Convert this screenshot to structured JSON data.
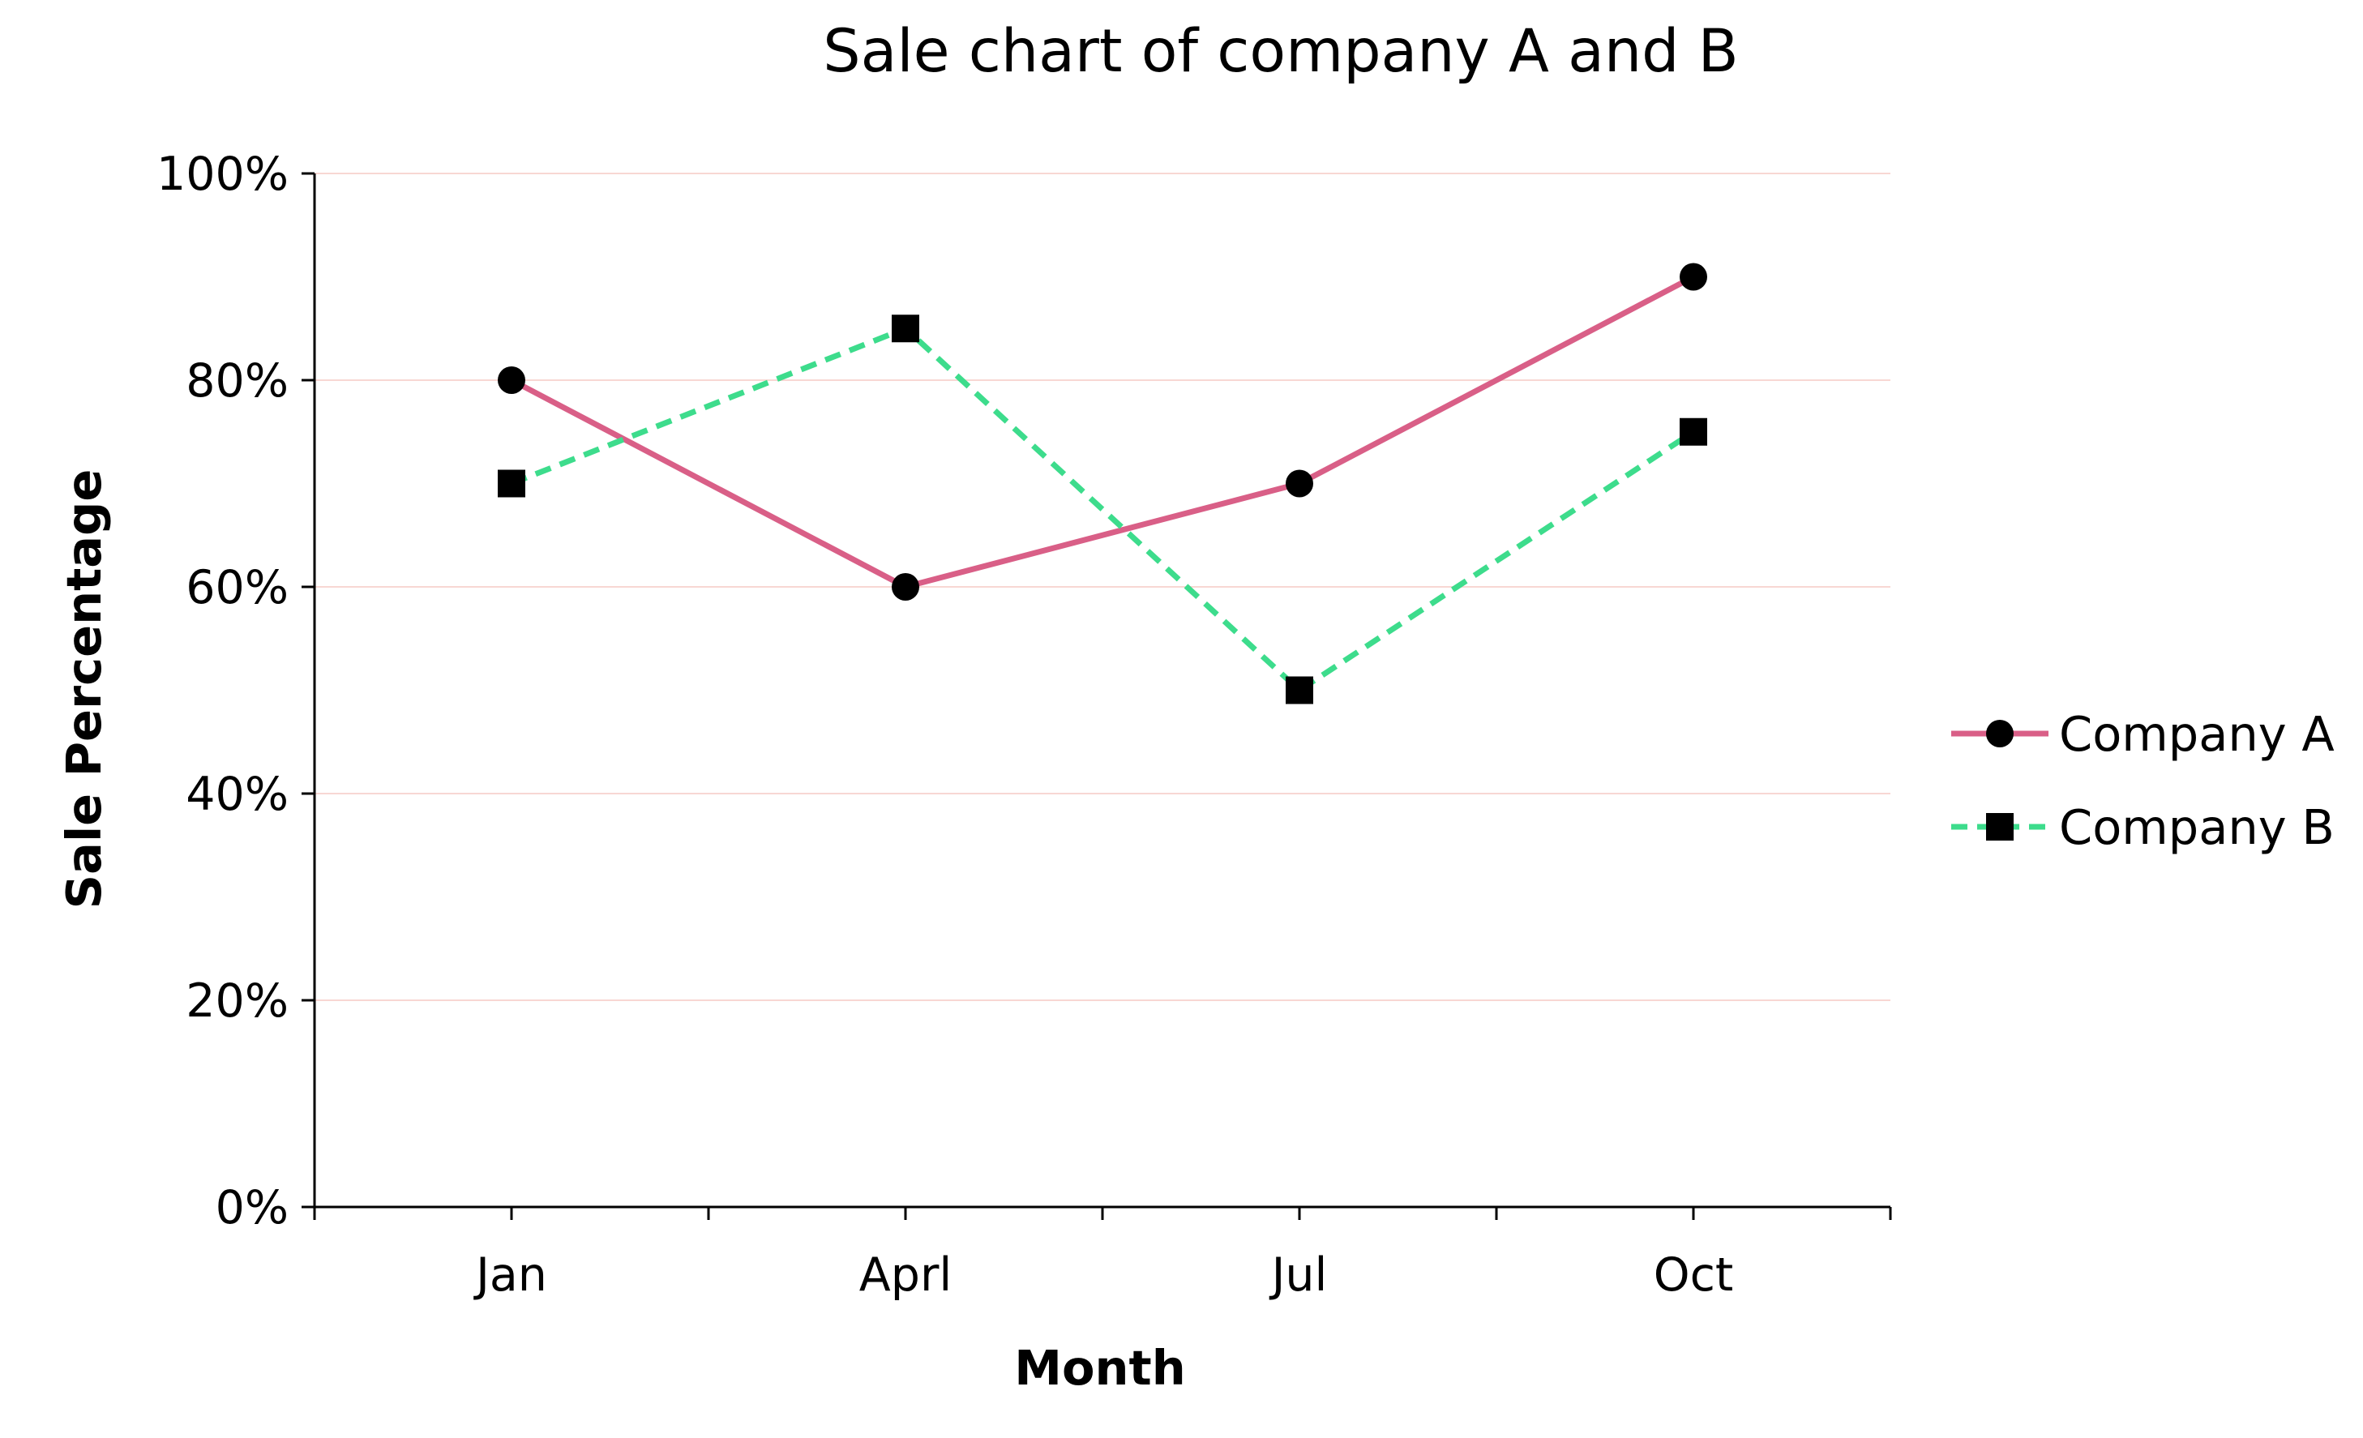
{
  "chart_data": {
    "type": "line",
    "title": "Sale chart of company A and B",
    "xlabel": "Month",
    "ylabel": "Sale Percentage",
    "categories": [
      "Jan",
      "Aprl",
      "Jul",
      "Oct"
    ],
    "ylim": [
      0,
      100
    ],
    "yticks": [
      0,
      20,
      40,
      60,
      80,
      100
    ],
    "ytick_labels": [
      "0%",
      "20%",
      "40%",
      "60%",
      "80%",
      "100%"
    ],
    "grid": true,
    "grid_color": "#f8d7d3",
    "legend_position": "right",
    "series": [
      {
        "name": "Company A",
        "values": [
          80,
          60,
          70,
          90
        ],
        "color": "#d95f87",
        "line_style": "solid",
        "marker": "circle"
      },
      {
        "name": "Company B",
        "values": [
          70,
          85,
          50,
          75
        ],
        "color": "#3ddc8c",
        "line_style": "dashed",
        "marker": "square"
      }
    ]
  }
}
